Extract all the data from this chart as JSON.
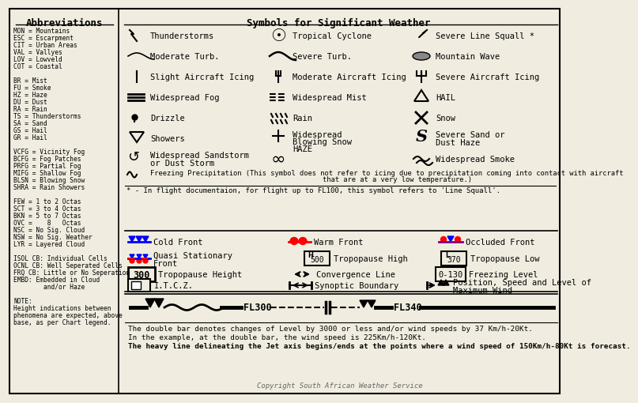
{
  "bg_color": "#f0ede0",
  "abbrev_lines": [
    "MON = Mountains",
    "ESC = Escarpment",
    "CIT = Urban Areas",
    "VAL = Vallyes",
    "LOV = Lowveld",
    "COT = Coastal",
    "",
    "BR = Mist",
    "FU = Smoke",
    "HZ = Haze",
    "DU = Dust",
    "RA = Rain",
    "TS = Thunderstorms",
    "SA = Sand",
    "GS = Hail",
    "GR = Hail",
    "",
    "VCFG = Vicinity Fog",
    "BCFG = Fog Patches",
    "PRFG = Partial Fog",
    "MIFG = Shallow Fog",
    "BLSN = Blowing Snow",
    "SHRA = Rain Showers",
    "",
    "FEW = 1 to 2 Octas",
    "SCT = 3 to 4 Octas",
    "BKN = 5 to 7 Octas",
    "OVC =    8   Octas",
    "NSC = No Sig. Cloud",
    "NSW = No Sig. Weather",
    "LYR = Layered Cloud",
    "",
    "ISOL CB: Individual Cells",
    "OCNL CB: Well Seperated Cells",
    "FRQ CB: Little or No Seperation",
    "EMBD: Embedded in Cloud",
    "        and/or Haze",
    "",
    "NOTE:",
    "Height indications between",
    "phenomena are expected, above",
    "base, as per Chart legend."
  ],
  "jet_text1": "The double bar denotes changes of Level by 3000 or less and/or wind speeds by 37 Km/h-20Kt.",
  "jet_text2": "In the example, at the double bar, the wind speed is 225Km/h-120Kt.",
  "jet_text3": "The heavy line delineating the Jet axis begins/ends at the points where a wind speed of 150Km/h-80Kt is forecast.",
  "copyright": "Copyright South African Weather Service"
}
